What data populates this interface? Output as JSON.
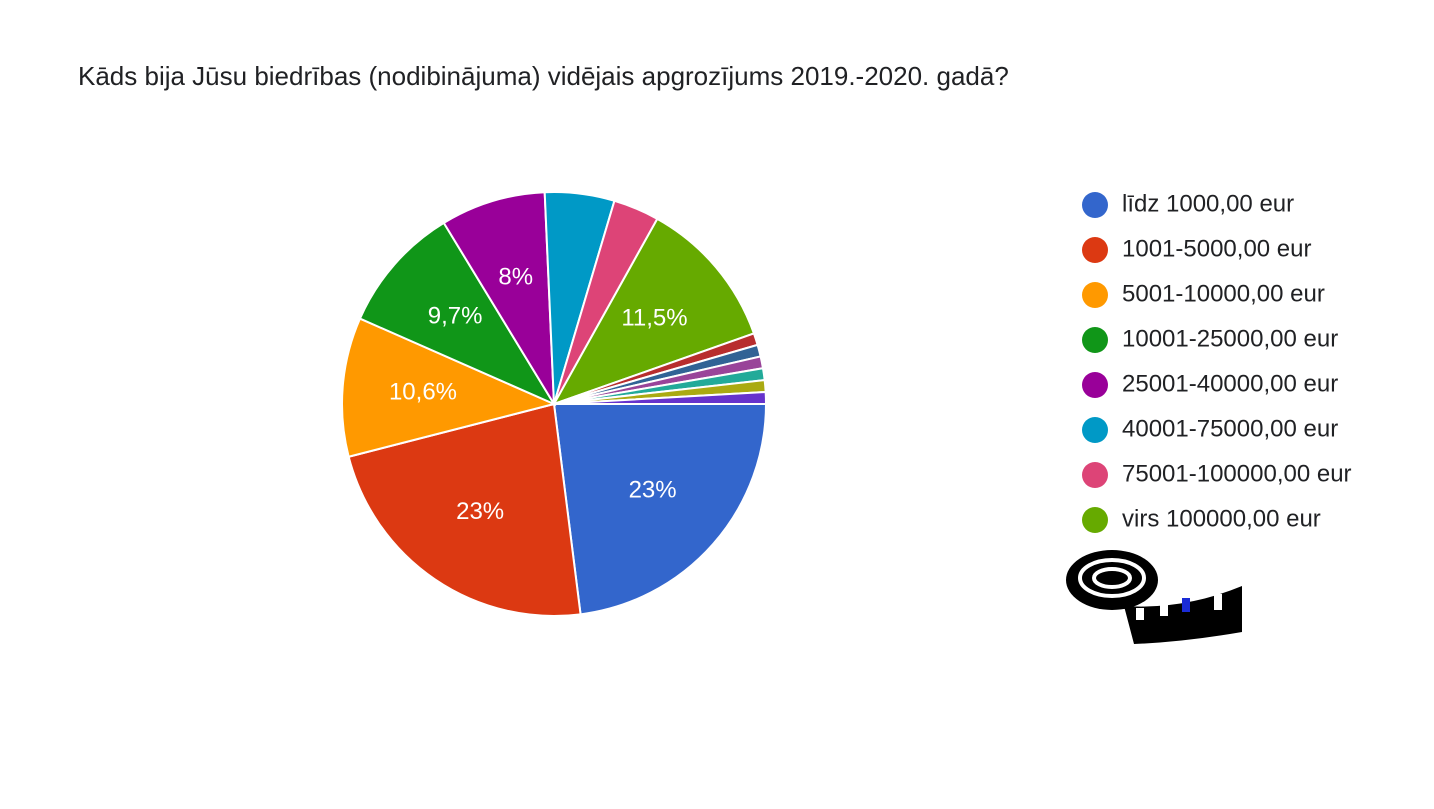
{
  "chart_data": {
    "type": "pie",
    "title": "Kāds bija Jūsu biedrības (nodibinājuma) vidējais apgrozījums 2019.-2020. gadā?",
    "categories": [
      "līdz 1000,00 eur",
      "1001-5000,00 eur",
      "5001-10000,00 eur",
      "10001-25000,00 eur",
      "25001-40000,00 eur",
      "40001-75000,00 eur",
      "75001-100000,00 eur",
      "virs 100000,00 eur",
      null,
      null,
      null,
      null,
      null,
      null
    ],
    "values": [
      23,
      23,
      10.6,
      9.7,
      8,
      5.3,
      3.5,
      11.5,
      0.9,
      0.9,
      0.9,
      0.9,
      0.9,
      0.9
    ],
    "value_labels": [
      "23%",
      "23%",
      "10,6%",
      "9,7%",
      "8%",
      null,
      null,
      "11,5%",
      null,
      null,
      null,
      null,
      null,
      null
    ],
    "colors": [
      "#3366cc",
      "#dc3912",
      "#ff9900",
      "#109618",
      "#990099",
      "#0099c6",
      "#dd4477",
      "#66aa00",
      "#b82e2e",
      "#316395",
      "#994499",
      "#22aa99",
      "#aaaa11",
      "#6633cc"
    ]
  }
}
